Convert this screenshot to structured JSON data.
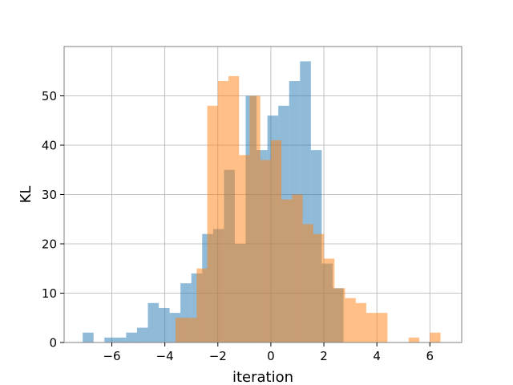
{
  "chart_data": {
    "type": "bar",
    "subtype": "histogram",
    "title": "",
    "xlabel": "iteration",
    "ylabel": "KL",
    "xlim": [
      -7.8,
      7.2
    ],
    "ylim": [
      0,
      60
    ],
    "grid": true,
    "xticks": [
      -6,
      -4,
      -2,
      0,
      2,
      4,
      6
    ],
    "xtick_labels": [
      "−6",
      "−4",
      "−2",
      "0",
      "2",
      "4",
      "6"
    ],
    "yticks": [
      0,
      10,
      20,
      30,
      40,
      50
    ],
    "ytick_labels": [
      "0",
      "10",
      "20",
      "30",
      "40",
      "50"
    ],
    "series": [
      {
        "color": "#1f77b4",
        "opacity": 0.5,
        "bins": [
          {
            "x0": -7.1,
            "x1": -6.69,
            "count": 2
          },
          {
            "x0": -6.69,
            "x1": -6.28,
            "count": 0
          },
          {
            "x0": -6.28,
            "x1": -5.87,
            "count": 1
          },
          {
            "x0": -5.87,
            "x1": -5.46,
            "count": 1
          },
          {
            "x0": -5.46,
            "x1": -5.05,
            "count": 2
          },
          {
            "x0": -5.05,
            "x1": -4.64,
            "count": 3
          },
          {
            "x0": -4.64,
            "x1": -4.23,
            "count": 8
          },
          {
            "x0": -4.23,
            "x1": -3.82,
            "count": 7
          },
          {
            "x0": -3.82,
            "x1": -3.41,
            "count": 6
          },
          {
            "x0": -3.41,
            "x1": -3.0,
            "count": 12
          },
          {
            "x0": -3.0,
            "x1": -2.59,
            "count": 14
          },
          {
            "x0": -2.59,
            "x1": -2.18,
            "count": 22
          },
          {
            "x0": -2.18,
            "x1": -1.77,
            "count": 23
          },
          {
            "x0": -1.77,
            "x1": -1.36,
            "count": 35
          },
          {
            "x0": -1.36,
            "x1": -0.95,
            "count": 20
          },
          {
            "x0": -0.95,
            "x1": -0.54,
            "count": 50
          },
          {
            "x0": -0.54,
            "x1": -0.13,
            "count": 39
          },
          {
            "x0": -0.13,
            "x1": 0.28,
            "count": 46
          },
          {
            "x0": 0.28,
            "x1": 0.69,
            "count": 48
          },
          {
            "x0": 0.69,
            "x1": 1.1,
            "count": 53
          },
          {
            "x0": 1.1,
            "x1": 1.51,
            "count": 57
          },
          {
            "x0": 1.51,
            "x1": 1.92,
            "count": 39
          },
          {
            "x0": 1.92,
            "x1": 2.33,
            "count": 16
          },
          {
            "x0": 2.33,
            "x1": 2.74,
            "count": 11
          }
        ]
      },
      {
        "color": "#ff7f0e",
        "opacity": 0.5,
        "bins": [
          {
            "x0": -3.6,
            "x1": -3.2,
            "count": 5
          },
          {
            "x0": -3.2,
            "x1": -2.8,
            "count": 5
          },
          {
            "x0": -2.8,
            "x1": -2.4,
            "count": 15
          },
          {
            "x0": -2.4,
            "x1": -2.0,
            "count": 48
          },
          {
            "x0": -2.0,
            "x1": -1.6,
            "count": 53
          },
          {
            "x0": -1.6,
            "x1": -1.2,
            "count": 54
          },
          {
            "x0": -1.2,
            "x1": -0.8,
            "count": 38
          },
          {
            "x0": -0.8,
            "x1": -0.4,
            "count": 50
          },
          {
            "x0": -0.4,
            "x1": 0.0,
            "count": 37
          },
          {
            "x0": 0.0,
            "x1": 0.4,
            "count": 41
          },
          {
            "x0": 0.4,
            "x1": 0.8,
            "count": 29
          },
          {
            "x0": 0.8,
            "x1": 1.2,
            "count": 30
          },
          {
            "x0": 1.2,
            "x1": 1.6,
            "count": 24
          },
          {
            "x0": 1.6,
            "x1": 2.0,
            "count": 22
          },
          {
            "x0": 2.0,
            "x1": 2.4,
            "count": 17
          },
          {
            "x0": 2.4,
            "x1": 2.8,
            "count": 11
          },
          {
            "x0": 2.8,
            "x1": 3.2,
            "count": 9
          },
          {
            "x0": 3.2,
            "x1": 3.6,
            "count": 8
          },
          {
            "x0": 3.6,
            "x1": 4.0,
            "count": 6
          },
          {
            "x0": 4.0,
            "x1": 4.4,
            "count": 6
          },
          {
            "x0": 4.4,
            "x1": 4.8,
            "count": 0
          },
          {
            "x0": 4.8,
            "x1": 5.2,
            "count": 0
          },
          {
            "x0": 5.2,
            "x1": 5.6,
            "count": 1
          },
          {
            "x0": 5.6,
            "x1": 6.0,
            "count": 0
          },
          {
            "x0": 6.0,
            "x1": 6.4,
            "count": 2
          }
        ]
      }
    ]
  }
}
